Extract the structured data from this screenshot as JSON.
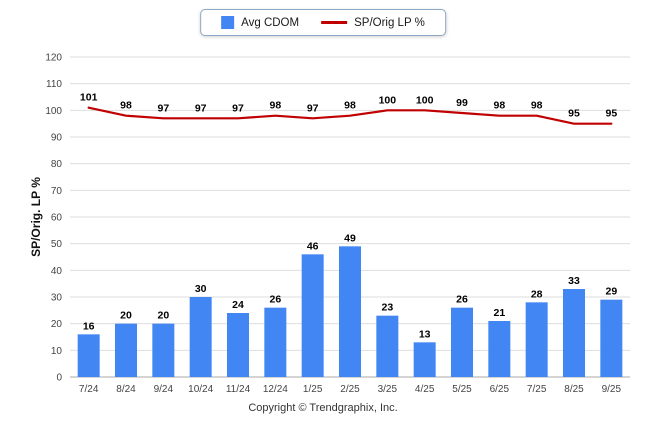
{
  "footer": {
    "copyright": "Copyright © Trendgraphix, Inc."
  },
  "chart_data": {
    "type": "bar+line",
    "title": "",
    "xlabel": "",
    "ylabel": "SP/Orig. LP %",
    "ylim": [
      0,
      120
    ],
    "ytick_step": 10,
    "grid": true,
    "legend_position": "top",
    "categories": [
      "7/24",
      "8/24",
      "9/24",
      "10/24",
      "11/24",
      "12/24",
      "1/25",
      "2/25",
      "3/25",
      "4/25",
      "5/25",
      "6/25",
      "7/25",
      "8/25",
      "9/25"
    ],
    "series": [
      {
        "name": "Avg CDOM",
        "type": "bar",
        "color": "#4286f4",
        "values": [
          16,
          20,
          20,
          30,
          24,
          26,
          46,
          49,
          23,
          13,
          26,
          21,
          28,
          33,
          29
        ]
      },
      {
        "name": "SP/Orig LP %",
        "type": "line",
        "color": "#c00000",
        "values": [
          101,
          98,
          97,
          97,
          97,
          98,
          97,
          98,
          100,
          100,
          99,
          98,
          98,
          95,
          95
        ]
      }
    ]
  }
}
